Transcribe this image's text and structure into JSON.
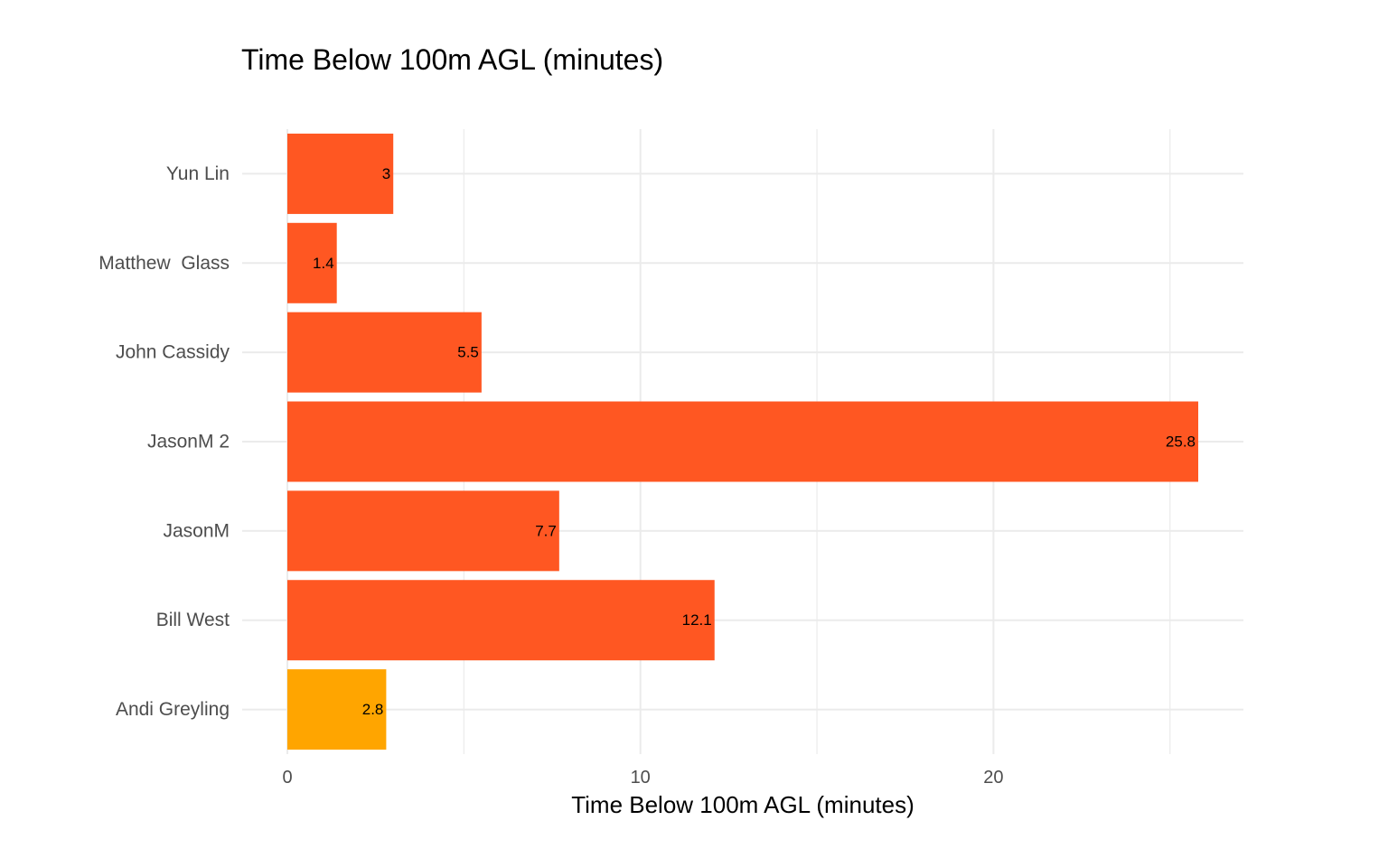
{
  "chart_data": {
    "type": "bar",
    "orientation": "horizontal",
    "title": "Time Below 100m AGL (minutes)",
    "xlabel": "Time Below 100m AGL (minutes)",
    "ylabel": "",
    "categories": [
      "Andi Greyling",
      "Bill West",
      "JasonM",
      "JasonM 2",
      "John Cassidy",
      "Matthew  Glass",
      "Yun Lin"
    ],
    "values": [
      2.8,
      12.1,
      7.7,
      25.8,
      5.5,
      1.4,
      3
    ],
    "data_labels": [
      "2.8",
      "12.1",
      "7.7",
      "25.8",
      "5.5",
      "1.4",
      "3"
    ],
    "bar_colors": [
      "#FFA500",
      "#FF5722",
      "#FF5722",
      "#FF5722",
      "#FF5722",
      "#FF5722",
      "#FF5722"
    ],
    "xlim": [
      0,
      27.1
    ],
    "x_ticks": [
      0,
      10,
      20
    ],
    "x_tick_labels": [
      "0",
      "10",
      "20"
    ],
    "x_minor_ticks": [
      5,
      15,
      25
    ],
    "grid": true,
    "legend": "none",
    "colors": {
      "highlight": "#FFA500",
      "default": "#FF5722",
      "grid": "#ebebeb",
      "axis_text": "#4d4d4d"
    }
  }
}
